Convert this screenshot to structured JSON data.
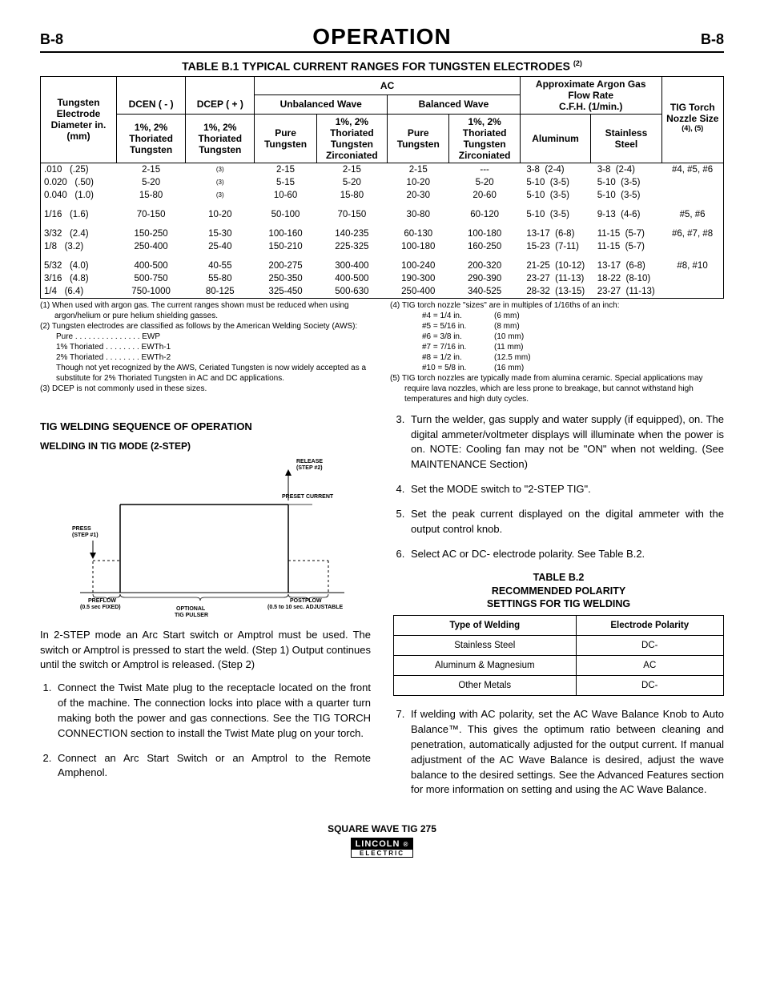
{
  "page": {
    "num": "B-8",
    "title": "OPERATION"
  },
  "tableB1": {
    "title": "TABLE B.1 TYPICAL CURRENT RANGES FOR TUNGSTEN ELECTRODES",
    "title_sup": "(2)",
    "header": {
      "ac": "AC",
      "dcen": "DCEN  ( - )",
      "dcep": "DCEP  ( + )",
      "unbalanced": "Unbalanced Wave",
      "balanced": "Balanced Wave",
      "argon": "Approximate Argon Gas Flow Rate",
      "argon_units": "C.F.H.  (1/min.)",
      "diam": "Tungsten Electrode Diameter in.  (mm)",
      "thoriated": "1%, 2% Thoriated Tungsten",
      "pure": "Pure Tungsten",
      "zirc": "1%, 2% Thoriated Tungsten Zirconiated",
      "aluminum": "Aluminum",
      "stainless": "Stainless Steel",
      "torch": "TIG Torch Nozzle Size",
      "torch_sup": "(4), (5)"
    },
    "rows": [
      {
        "in": ".010",
        "mm": "(.25)",
        "dcen": "2-15",
        "dcep": "(3)",
        "uw_pure": "2-15",
        "uw_zirc": "2-15",
        "bw_pure": "2-15",
        "bw_zirc": "---",
        "al": "3-8",
        "al2": "(2-4)",
        "ss": "3-8",
        "ss2": "(2-4)",
        "torch": "#4, #5, #6"
      },
      {
        "in": "0.020",
        "mm": "(.50)",
        "dcen": "5-20",
        "dcep": "(3)",
        "uw_pure": "5-15",
        "uw_zirc": "5-20",
        "bw_pure": "10-20",
        "bw_zirc": "5-20",
        "al": "5-10",
        "al2": "(3-5)",
        "ss": "5-10",
        "ss2": "(3-5)",
        "torch": ""
      },
      {
        "in": "0.040",
        "mm": "(1.0)",
        "dcen": "15-80",
        "dcep": "(3)",
        "uw_pure": "10-60",
        "uw_zirc": "15-80",
        "bw_pure": "20-30",
        "bw_zirc": "20-60",
        "al": "5-10",
        "al2": "(3-5)",
        "ss": "5-10",
        "ss2": "(3-5)",
        "torch": ""
      },
      {
        "gap": true
      },
      {
        "in": "1/16",
        "mm": "(1.6)",
        "dcen": "70-150",
        "dcep": "10-20",
        "uw_pure": "50-100",
        "uw_zirc": "70-150",
        "bw_pure": "30-80",
        "bw_zirc": "60-120",
        "al": "5-10",
        "al2": "(3-5)",
        "ss": "9-13",
        "ss2": "(4-6)",
        "torch": "#5, #6"
      },
      {
        "gap": true
      },
      {
        "in": "3/32",
        "mm": "(2.4)",
        "dcen": "150-250",
        "dcep": "15-30",
        "uw_pure": "100-160",
        "uw_zirc": "140-235",
        "bw_pure": "60-130",
        "bw_zirc": "100-180",
        "al": "13-17",
        "al2": "(6-8)",
        "ss": "11-15",
        "ss2": "(5-7)",
        "torch": "#6, #7, #8"
      },
      {
        "in": "1/8",
        "mm": "(3.2)",
        "dcen": "250-400",
        "dcep": "25-40",
        "uw_pure": "150-210",
        "uw_zirc": "225-325",
        "bw_pure": "100-180",
        "bw_zirc": "160-250",
        "al": "15-23",
        "al2": "(7-11)",
        "ss": "11-15",
        "ss2": "(5-7)",
        "torch": ""
      },
      {
        "gap": true
      },
      {
        "in": "5/32",
        "mm": "(4.0)",
        "dcen": "400-500",
        "dcep": "40-55",
        "uw_pure": "200-275",
        "uw_zirc": "300-400",
        "bw_pure": "100-240",
        "bw_zirc": "200-320",
        "al": "21-25",
        "al2": "(10-12)",
        "ss": "13-17",
        "ss2": "(6-8)",
        "torch": "#8, #10"
      },
      {
        "in": "3/16",
        "mm": "(4.8)",
        "dcen": "500-750",
        "dcep": "55-80",
        "uw_pure": "250-350",
        "uw_zirc": "400-500",
        "bw_pure": "190-300",
        "bw_zirc": "290-390",
        "al": "23-27",
        "al2": "(11-13)",
        "ss": "18-22",
        "ss2": "(8-10)",
        "torch": ""
      },
      {
        "in": "1/4",
        "mm": "(6.4)",
        "dcen": "750-1000",
        "dcep": "80-125",
        "uw_pure": "325-450",
        "uw_zirc": "500-630",
        "bw_pure": "250-400",
        "bw_zirc": "340-525",
        "al": "28-32",
        "al2": "(13-15)",
        "ss": "23-27",
        "ss2": "(11-13)",
        "torch": ""
      }
    ]
  },
  "footnotes": {
    "left": [
      "(1)  When used with argon gas.  The current ranges shown must be reduced when using argon/helium or pure helium shielding gasses.",
      "(2)  Tungsten electrodes are classified as follows by the American Welding Society (AWS):",
      "Pure . . . . . . . . . . . . . . . EWP",
      "1% Thoriated . . . . . . . . EWTh-1",
      "2% Thoriated . . . . . . . . EWTh-2",
      "Though not yet recognized by the AWS, Ceriated Tungsten is now widely accepted as a substitute for 2% Thoriated Tungsten in AC and DC applications.",
      "(3)  DCEP is not commonly used in these sizes."
    ],
    "right_head": "(4)  TIG torch nozzle \"sizes\" are in multiples of 1/16ths of an inch:",
    "right_rows": [
      [
        "#4 = 1/4 in.",
        "(6 mm)"
      ],
      [
        "#5 = 5/16 in.",
        "(8 mm)"
      ],
      [
        "#6 = 3/8 in.",
        "(10 mm)"
      ],
      [
        "#7 = 7/16 in.",
        "(11 mm)"
      ],
      [
        "#8 = 1/2 in.",
        "(12.5 mm)"
      ],
      [
        "#10 = 5/8 in.",
        "(16 mm)"
      ]
    ],
    "right_5": "(5)  TIG torch nozzles are typically made from alumina ceramic.  Special applications may require lava nozzles, which are less prone to breakage, but cannot withstand high temperatures and high duty cycles."
  },
  "left": {
    "h3": "TIG WELDING SEQUENCE OF OPERATION",
    "h4": "WELDING IN TIG MODE (2-STEP)",
    "figure": {
      "press": "PRESS\n(STEP #1)",
      "release": "RELEASE\n(STEP #2)",
      "preset": "PRESET CURRENT",
      "preflow": "PREFLOW\n(0.5 sec FIXED)",
      "postflow": "POSTFLOW\n(0.5 to 10 sec. ADJUSTABLE",
      "pulser": "OPTIONAL\nTIG PULSER"
    },
    "body": "In 2-STEP mode an Arc Start switch or Amptrol must be used. The switch or Amptrol is pressed to start the weld. (Step 1) Output continues until the switch or Amptrol is released. (Step 2)",
    "steps": [
      "Connect the Twist Mate plug to the receptacle located on the front of the machine. The connection locks into place with a quarter turn making both the power and gas connections. See the TIG TORCH CONNECTION section to install the Twist Mate plug on your torch.",
      "Connect an Arc Start Switch or an Amptrol to the Remote Amphenol."
    ]
  },
  "right": {
    "steps": [
      "Turn the welder, gas supply and water supply (if equipped), on. The digital ammeter/voltmeter displays will illuminate when the power is on. NOTE: Cooling fan may not be \"ON\" when not welding. (See MAINTENANCE Section)",
      "Set the MODE switch to \"2-STEP TIG\".",
      "Set the peak current displayed on the digital ammeter with the output control knob.",
      "Select AC or DC- electrode polarity.  See Table B.2."
    ],
    "tbl2_title": "TABLE B.2\nRECOMMENDED POLARITY\nSETTINGS FOR TIG WELDING",
    "tbl2_head": [
      "Type of Welding",
      "Electrode Polarity"
    ],
    "tbl2_rows": [
      [
        "Stainless Steel",
        "DC-"
      ],
      [
        "Aluminum & Magnesium",
        "AC"
      ],
      [
        "Other Metals",
        "DC-"
      ]
    ],
    "step7": "If welding with AC polarity, set the AC Wave Balance Knob to Auto Balance™.  This gives the optimum ratio between cleaning and penetration, automatically adjusted for the output current. If manual adjustment of the AC Wave Balance is desired, adjust the wave balance to the desired settings.  See the Advanced Features section for more information on setting and using the AC Wave Balance."
  },
  "footer": {
    "model": "SQUARE WAVE TIG 275",
    "logo1": "LINCOLN",
    "logo2": "ELECTRIC"
  }
}
